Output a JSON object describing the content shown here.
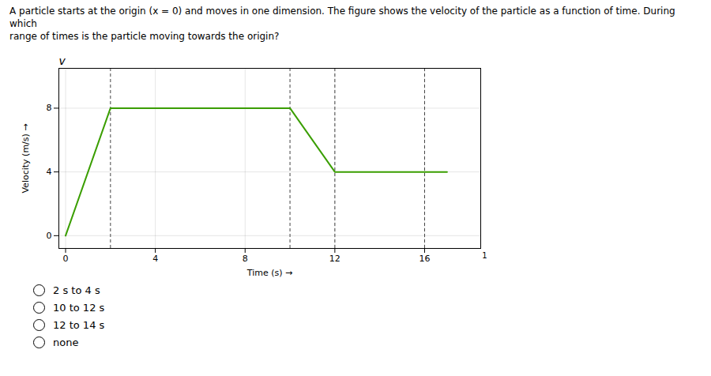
{
  "chart_data": {
    "type": "line",
    "title": "A particle starts at the origin (x = 0) and moves in one dimension. The figure shows the velocity of the particle as a function of time. During which\nrange of times is the particle moving towards the origin?",
    "xlabel": "Time (s)",
    "ylabel": "Velocity (m/s)",
    "annotations": [
      "v",
      "1"
    ],
    "x": [
      0,
      2,
      10,
      12,
      17
    ],
    "values": [
      0,
      8,
      8,
      4,
      4
    ],
    "color": "#3a9e00",
    "vlines": {
      "x": [
        2,
        10,
        12,
        16
      ],
      "color": "#444444",
      "line_style": "dashed"
    },
    "xlim": [
      -0.3,
      18.5
    ],
    "xticks": [
      0,
      4,
      8,
      12,
      16
    ],
    "ylim": [
      -0.8,
      10.5
    ],
    "yticks": [
      0,
      4,
      8
    ],
    "grid": true,
    "choices": [
      "2 s to 4 s",
      "10 to 12 s",
      "12 to 14 s",
      "none"
    ]
  }
}
